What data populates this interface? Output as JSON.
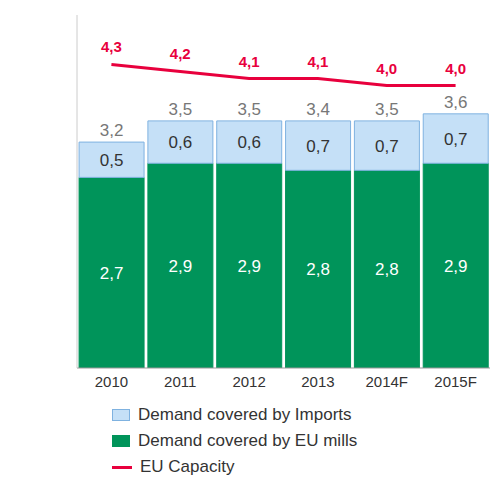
{
  "chart_data": {
    "type": "bar",
    "stacked": true,
    "data_labels": true,
    "tick_labels": "x",
    "grid": false,
    "categories": [
      "2010",
      "2011",
      "2012",
      "2013",
      "2014F",
      "2015F"
    ],
    "ylim": [
      0,
      5
    ],
    "series": [
      {
        "name": "Demand covered by Imports",
        "type": "bar",
        "color": "#c5e0f7",
        "values": [
          0.5,
          0.6,
          0.6,
          0.7,
          0.7,
          0.7
        ],
        "value_labels": [
          "0,5",
          "0,6",
          "0,6",
          "0,7",
          "0,7",
          "0,7"
        ]
      },
      {
        "name": "Demand covered by EU mills",
        "type": "bar",
        "color": "#00945a",
        "values": [
          2.7,
          2.9,
          2.9,
          2.8,
          2.8,
          2.9
        ],
        "value_labels": [
          "2,7",
          "2,9",
          "2,9",
          "2,8",
          "2,8",
          "2,9"
        ]
      },
      {
        "name": "EU Capacity",
        "type": "line",
        "color": "#e8003d",
        "values": [
          4.3,
          4.2,
          4.1,
          4.1,
          4.0,
          4.0
        ],
        "value_labels": [
          "4,3",
          "4,2",
          "4,1",
          "4,1",
          "4,0",
          "4,0"
        ]
      }
    ],
    "totals": [
      3.2,
      3.5,
      3.5,
      3.4,
      3.5,
      3.6
    ],
    "total_labels": [
      "3,2",
      "3,5",
      "3,5",
      "3,4",
      "3,5",
      "3,6"
    ]
  }
}
